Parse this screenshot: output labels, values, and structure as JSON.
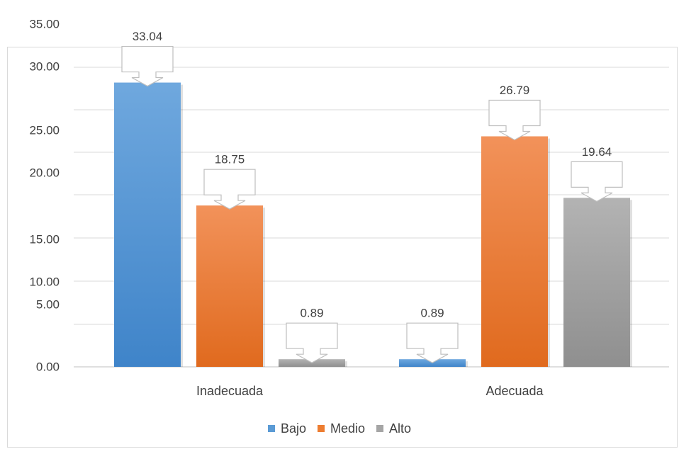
{
  "chart_data": {
    "type": "bar",
    "categories": [
      "Inadecuada",
      "Adecuada"
    ],
    "series": [
      {
        "name": "Bajo",
        "values": [
          33.04,
          0.89
        ],
        "color": "#5b9bd5"
      },
      {
        "name": "Medio",
        "values": [
          18.75,
          26.79
        ],
        "color": "#ed7d31"
      },
      {
        "name": "Alto",
        "values": [
          0.89,
          19.64
        ],
        "color": "#a5a5a5"
      }
    ],
    "data_labels": [
      [
        "33.04",
        "0.89"
      ],
      [
        "18.75",
        "26.79"
      ],
      [
        "0.89",
        "19.64"
      ]
    ],
    "y_tick_labels": [
      "0.00",
      "5.00",
      "10.00",
      "15.00",
      "20.00",
      "25.00",
      "30.00",
      "35.00"
    ],
    "title": "",
    "xlabel": "",
    "ylabel": "",
    "ylim": [
      0,
      35
    ],
    "grid": true,
    "legend_position": "bottom"
  }
}
